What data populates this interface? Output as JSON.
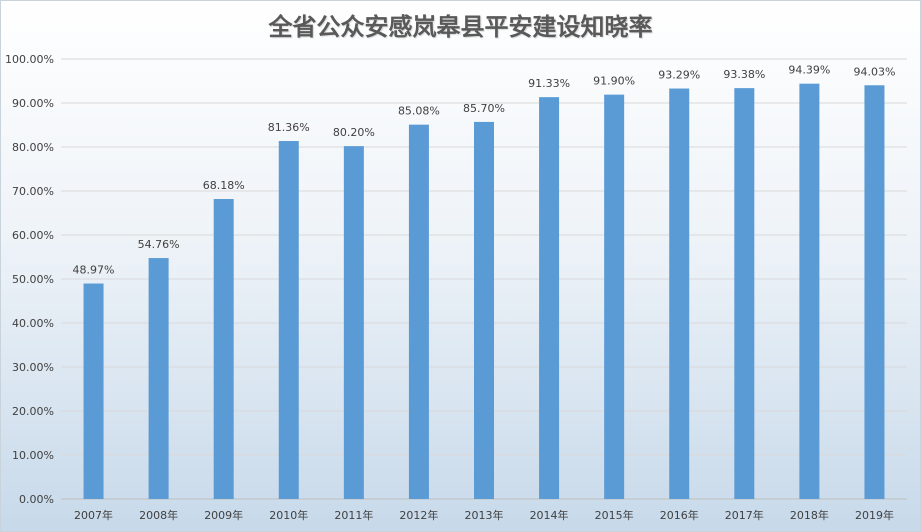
{
  "chart_data": {
    "type": "bar",
    "title": "全省公众安感岚皋县平安建设知晓率",
    "categories": [
      "2007年",
      "2008年",
      "2009年",
      "2010年",
      "2011年",
      "2012年",
      "2013年",
      "2014年",
      "2015年",
      "2016年",
      "2017年",
      "2018年",
      "2019年"
    ],
    "values": [
      48.97,
      54.76,
      68.18,
      81.36,
      80.2,
      85.08,
      85.7,
      91.33,
      91.9,
      93.29,
      93.38,
      94.39,
      94.03
    ],
    "data_labels": [
      "48.97%",
      "54.76%",
      "68.18%",
      "81.36%",
      "80.20%",
      "85.08%",
      "85.70%",
      "91.33%",
      "91.90%",
      "93.29%",
      "93.38%",
      "94.39%",
      "94.03%"
    ],
    "y_ticks": [
      "0.00%",
      "10.00%",
      "20.00%",
      "30.00%",
      "40.00%",
      "50.00%",
      "60.00%",
      "70.00%",
      "80.00%",
      "90.00%",
      "100.00%"
    ],
    "ylim": [
      0,
      100
    ],
    "grid": true,
    "legend": "none",
    "bar_color": "#5b9bd5"
  }
}
